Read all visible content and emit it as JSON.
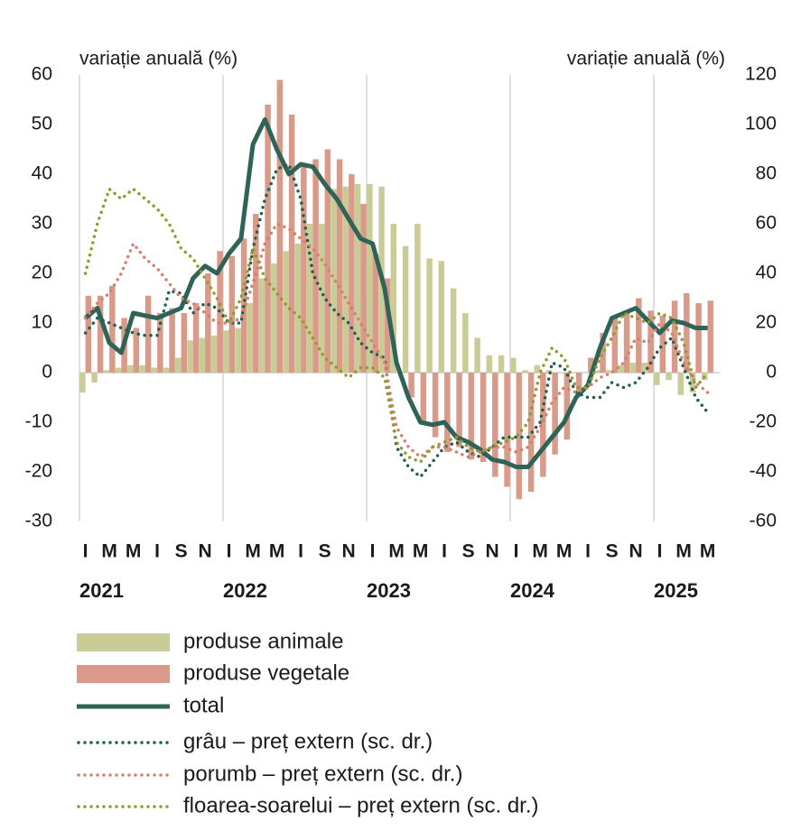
{
  "chart_data": {
    "type": "bar",
    "y_label": "variație anuală (%)",
    "y2_label": "variație anuală (%)",
    "categories": [
      "I",
      null,
      "M",
      null,
      "M",
      null,
      "I",
      null,
      "S",
      null,
      "N",
      null,
      "I",
      null,
      "M",
      null,
      "M",
      null,
      "I",
      null,
      "S",
      null,
      "N",
      null,
      "I",
      null,
      "M",
      null,
      "M",
      null,
      "I",
      null,
      "S",
      null,
      "N",
      null,
      "I",
      null,
      "M",
      null,
      "M",
      null,
      "I",
      null,
      "S",
      null,
      "N",
      null,
      "I",
      null,
      "M",
      null,
      "M"
    ],
    "years": [
      "2021",
      "2022",
      "2023",
      "2024",
      "2025"
    ],
    "ylim": [
      -30,
      60
    ],
    "yticks": [
      -30,
      -20,
      -10,
      0,
      10,
      20,
      30,
      40,
      50,
      60
    ],
    "y2lim": [
      -60,
      120
    ],
    "y2ticks": [
      -60,
      -40,
      -20,
      0,
      20,
      40,
      60,
      80,
      100,
      120
    ],
    "series": [
      {
        "name": "produse animale",
        "type": "bar",
        "color": "#c9cc96",
        "values": [
          -4,
          -2,
          0.5,
          1,
          1.5,
          1.5,
          1,
          1,
          3,
          6.5,
          7,
          7.5,
          8.5,
          9,
          14,
          19,
          22,
          24.5,
          26,
          30,
          30,
          37,
          37.5,
          38,
          38,
          37.5,
          30,
          25.5,
          30,
          23,
          22.5,
          17,
          12,
          7,
          3.5,
          3.5,
          3,
          0.5,
          1.5,
          0.5,
          0,
          0,
          0,
          0.5,
          0.5,
          1.5,
          2,
          2,
          -2.5,
          -1.5,
          -4.5,
          -4,
          -1.5
        ]
      },
      {
        "name": "produse vegetale",
        "type": "bar",
        "color": "#d99a8a",
        "values": [
          15.5,
          15.5,
          17.5,
          11,
          9,
          15.5,
          12,
          13,
          12,
          14,
          20,
          24.5,
          23.5,
          27,
          32,
          54,
          59,
          52,
          42,
          43,
          45,
          43,
          40,
          34,
          24,
          19,
          0,
          -5,
          -10,
          -13,
          -16,
          -15,
          -17.5,
          -18,
          -21,
          -23,
          -25.5,
          -24,
          -21,
          -16.5,
          -13.5,
          -4,
          3,
          8,
          11.5,
          12,
          15,
          12.5,
          11.5,
          14.5,
          16,
          14,
          14.5
        ]
      },
      {
        "name": "total",
        "type": "line",
        "color": "#2e6356",
        "values": [
          11,
          13,
          6,
          4,
          12,
          11.5,
          11,
          12,
          13,
          19,
          21.5,
          20,
          24,
          27,
          46,
          51,
          45,
          40,
          42,
          41.5,
          38,
          35,
          31,
          27,
          26,
          17,
          2,
          -5,
          -10,
          -10.5,
          -10,
          -13,
          -14,
          -15.5,
          -17.5,
          -18,
          -19,
          -19,
          -16,
          -13,
          -10,
          -5,
          -2.5,
          5,
          11,
          12,
          13,
          10.5,
          8,
          10.5,
          10,
          9,
          9
        ]
      },
      {
        "name": "grâu – preț extern (sc. dr.)",
        "type": "line",
        "style": "dotted",
        "axis": "y2",
        "color": "#1f5f4d",
        "values": [
          16,
          22,
          20,
          18,
          16,
          15,
          15,
          33,
          32,
          24,
          28,
          26,
          20,
          20,
          50,
          70,
          82,
          84,
          70,
          40,
          30,
          24,
          20,
          12,
          8,
          6,
          -30,
          -38,
          -42,
          -36,
          -30,
          -28,
          -32,
          -34,
          -30,
          -26,
          -26,
          -26,
          -20,
          4,
          2,
          -8,
          -10,
          -10,
          -4,
          -6,
          -4,
          2,
          10,
          14,
          2,
          -10,
          -16
        ]
      },
      {
        "name": "porumb – preț extern (sc. dr.)",
        "type": "line",
        "style": "dotted",
        "axis": "y2",
        "color": "#d4806a",
        "values": [
          22,
          28,
          32,
          40,
          52,
          46,
          42,
          36,
          30,
          28,
          24,
          20,
          20,
          22,
          36,
          52,
          60,
          58,
          54,
          50,
          44,
          36,
          28,
          20,
          12,
          4,
          -22,
          -30,
          -34,
          -30,
          -30,
          -32,
          -34,
          -32,
          -30,
          -30,
          -32,
          -30,
          -22,
          -12,
          -6,
          -8,
          -6,
          -2,
          0,
          4,
          14,
          12,
          20,
          16,
          4,
          -4,
          -8
        ]
      },
      {
        "name": "floarea-soarelui – preț extern (sc. dr.)",
        "type": "line",
        "style": "dotted",
        "axis": "y2",
        "color": "#8f9a30",
        "values": [
          40,
          60,
          74,
          70,
          74,
          70,
          66,
          60,
          50,
          46,
          38,
          30,
          20,
          30,
          50,
          38,
          32,
          26,
          22,
          14,
          6,
          2,
          -2,
          2,
          2,
          -2,
          -28,
          -34,
          -36,
          -30,
          -28,
          -26,
          -30,
          -32,
          -30,
          -28,
          -26,
          -20,
          0,
          10,
          6,
          -6,
          -6,
          6,
          14,
          24,
          22,
          20,
          24,
          22,
          12,
          -6,
          0
        ]
      }
    ]
  }
}
